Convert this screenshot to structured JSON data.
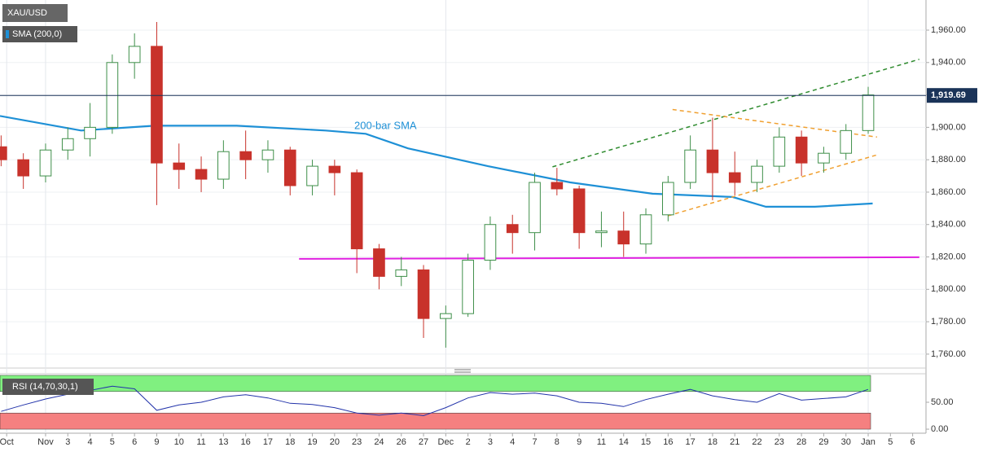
{
  "chart_data": [
    {
      "type": "candlestick",
      "title": "XAU/USD",
      "x": [
        -2,
        -1,
        0,
        1,
        2,
        3,
        4,
        5,
        6,
        7,
        8,
        9,
        10,
        11,
        12,
        13,
        14,
        15,
        16,
        17,
        18,
        19,
        20,
        21,
        22,
        23,
        24,
        25,
        26,
        27,
        28,
        29,
        30,
        31,
        32,
        33,
        34,
        35,
        36,
        37
      ],
      "open": [
        1888,
        1880,
        1870,
        1886,
        1893,
        1900,
        1940,
        1950,
        1878,
        1874,
        1868,
        1885,
        1880,
        1886,
        1864,
        1876,
        1872,
        1825,
        1808,
        1812,
        1782,
        1785,
        1818,
        1840,
        1835,
        1866,
        1862,
        1835,
        1836,
        1828,
        1846,
        1866,
        1886,
        1872,
        1866,
        1876,
        1894,
        1878,
        1884,
        1898
      ],
      "high": [
        1895,
        1884,
        1890,
        1900,
        1915,
        1945,
        1958,
        1965,
        1890,
        1882,
        1892,
        1898,
        1892,
        1888,
        1880,
        1880,
        1874,
        1828,
        1820,
        1815,
        1790,
        1822,
        1845,
        1846,
        1872,
        1875,
        1864,
        1848,
        1848,
        1850,
        1870,
        1895,
        1906,
        1885,
        1880,
        1900,
        1898,
        1888,
        1902,
        1925
      ],
      "low": [
        1876,
        1862,
        1866,
        1880,
        1882,
        1896,
        1930,
        1852,
        1862,
        1860,
        1862,
        1868,
        1872,
        1858,
        1858,
        1858,
        1810,
        1800,
        1802,
        1770,
        1764,
        1783,
        1812,
        1822,
        1824,
        1858,
        1825,
        1826,
        1820,
        1822,
        1842,
        1862,
        1855,
        1858,
        1860,
        1872,
        1870,
        1872,
        1880,
        1896
      ],
      "close": [
        1880,
        1870,
        1886,
        1893,
        1900,
        1940,
        1950,
        1878,
        1874,
        1868,
        1885,
        1880,
        1886,
        1864,
        1876,
        1872,
        1825,
        1808,
        1812,
        1782,
        1785,
        1818,
        1840,
        1835,
        1866,
        1862,
        1835,
        1836,
        1828,
        1846,
        1866,
        1886,
        1872,
        1866,
        1876,
        1894,
        1878,
        1884,
        1898,
        1920
      ],
      "up_color": "#3f8f4a",
      "down_color": "#c8322b",
      "overlays": [
        {
          "name": "SMA (200,0)",
          "color": "#1e90d6",
          "x": [
            -2.05,
            1.6,
            4.9,
            8.6,
            12.6,
            14.4,
            16.3,
            19.9,
            23.6,
            27.3,
            30.9,
            32.4,
            34.6,
            37.2
          ],
          "values": [
            1907,
            1898,
            1901,
            1901,
            1898,
            1896,
            1887,
            1876,
            1866,
            1859,
            1857,
            1851,
            1851,
            1853
          ]
        }
      ],
      "annotations": [
        "200-bar SMA"
      ],
      "trendlines": [
        {
          "color": "#2e8b2e",
          "x": [
            22.8,
            39.3
          ],
          "values": [
            1875.6,
            1942
          ]
        },
        {
          "color": "#f0a030",
          "x": [
            28.2,
            37.4
          ],
          "values": [
            1911,
            1894
          ]
        },
        {
          "color": "#f0a030",
          "x": [
            28,
            37.4
          ],
          "values": [
            1845.4,
            1883
          ]
        },
        {
          "color": "#e020e0",
          "x": [
            11.4,
            39.3
          ],
          "values": [
            1818.8,
            1819.8
          ]
        }
      ],
      "last_price": {
        "value": 1919.69,
        "label": "1,919.69"
      },
      "xlim": [
        -2.05,
        39.6
      ],
      "ylim": [
        1751.4,
        1978.6
      ],
      "yticks": [
        {
          "value": 1760,
          "label": "1,760.00"
        },
        {
          "value": 1780,
          "label": "1,780.00"
        },
        {
          "value": 1800,
          "label": "1,800.00"
        },
        {
          "value": 1820,
          "label": "1,820.00"
        },
        {
          "value": 1840,
          "label": "1,840.00"
        },
        {
          "value": 1860,
          "label": "1,860.00"
        },
        {
          "value": 1880,
          "label": "1,880.00"
        },
        {
          "value": 1900,
          "label": "1,900.00"
        },
        {
          "value": 1920,
          "label": "1,920.00"
        },
        {
          "value": 1940,
          "label": "1,940.00"
        },
        {
          "value": 1960,
          "label": "1,960.00"
        }
      ],
      "xticks": [
        {
          "value": -1.75,
          "label": "Oct"
        },
        {
          "value": 0,
          "label": "Nov"
        },
        {
          "value": 1,
          "label": "3"
        },
        {
          "value": 2,
          "label": "4"
        },
        {
          "value": 3,
          "label": "5"
        },
        {
          "value": 4,
          "label": "6"
        },
        {
          "value": 5,
          "label": "9"
        },
        {
          "value": 6,
          "label": "10"
        },
        {
          "value": 7,
          "label": "11"
        },
        {
          "value": 8,
          "label": "13"
        },
        {
          "value": 9,
          "label": "16"
        },
        {
          "value": 10,
          "label": "17"
        },
        {
          "value": 11,
          "label": "18"
        },
        {
          "value": 12,
          "label": "19"
        },
        {
          "value": 13,
          "label": "20"
        },
        {
          "value": 14,
          "label": "23"
        },
        {
          "value": 15,
          "label": "24"
        },
        {
          "value": 16,
          "label": "26"
        },
        {
          "value": 17,
          "label": "27"
        },
        {
          "value": 18,
          "label": "Dec"
        },
        {
          "value": 19,
          "label": "2"
        },
        {
          "value": 20,
          "label": "3"
        },
        {
          "value": 21,
          "label": "4"
        },
        {
          "value": 22,
          "label": "7"
        },
        {
          "value": 23,
          "label": "8"
        },
        {
          "value": 24,
          "label": "9"
        },
        {
          "value": 25,
          "label": "11"
        },
        {
          "value": 26,
          "label": "14"
        },
        {
          "value": 27,
          "label": "15"
        },
        {
          "value": 28,
          "label": "16"
        },
        {
          "value": 29,
          "label": "17"
        },
        {
          "value": 30,
          "label": "18"
        },
        {
          "value": 31,
          "label": "21"
        },
        {
          "value": 32,
          "label": "22"
        },
        {
          "value": 33,
          "label": "23"
        },
        {
          "value": 34,
          "label": "28"
        },
        {
          "value": 35,
          "label": "29"
        },
        {
          "value": 36,
          "label": "30"
        },
        {
          "value": 37,
          "label": "Jan"
        },
        {
          "value": 38,
          "label": "5"
        },
        {
          "value": 39,
          "label": "6"
        }
      ],
      "grid": true
    },
    {
      "type": "line",
      "x": [
        -2,
        -1,
        0,
        1,
        2,
        3,
        4,
        5,
        6,
        7,
        8,
        9,
        10,
        11,
        12,
        13,
        14,
        15,
        16,
        17,
        18,
        19,
        20,
        21,
        22,
        23,
        24,
        25,
        26,
        27,
        28,
        29,
        30,
        31,
        32,
        33,
        34,
        35,
        36,
        37
      ],
      "series": [
        {
          "name": "RSI (14,70,30,1)",
          "color": "#2233aa",
          "values": [
            33,
            45,
            56,
            65,
            72,
            80,
            75,
            35,
            45,
            50,
            60,
            64,
            58,
            48,
            46,
            40,
            30,
            26,
            30,
            25,
            40,
            58,
            68,
            65,
            67,
            62,
            50,
            48,
            42,
            55,
            65,
            74,
            62,
            55,
            50,
            66,
            54,
            57,
            60,
            74
          ]
        }
      ],
      "bands": [
        {
          "from": 70,
          "to": 100,
          "color": "#80f080"
        },
        {
          "from": 0,
          "to": 30,
          "color": "#f58080"
        }
      ],
      "xlim": [
        -2.05,
        39.6
      ],
      "ylim": [
        -7.5,
        103
      ],
      "yticks": [
        {
          "value": 50,
          "label": "50.00"
        },
        {
          "value": 0,
          "label": "0.00"
        }
      ]
    }
  ]
}
